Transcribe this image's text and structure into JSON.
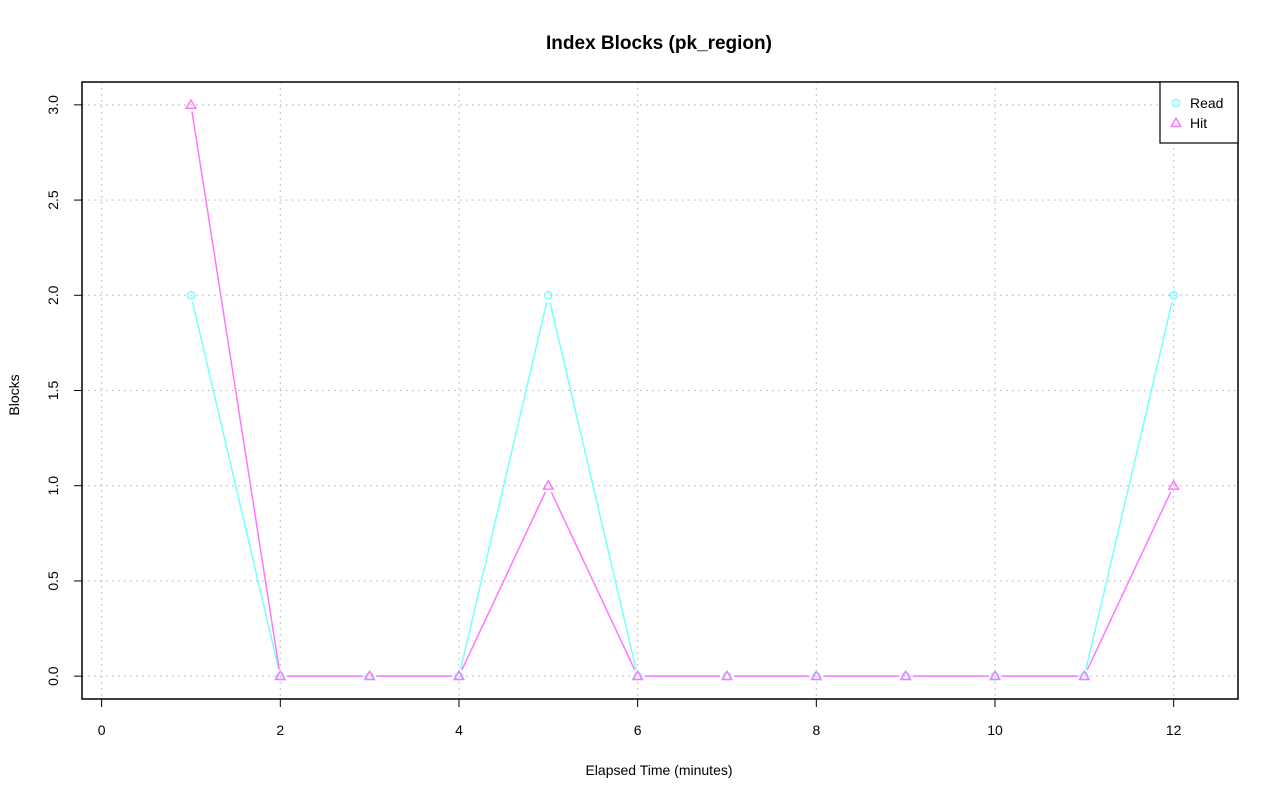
{
  "chart_data": {
    "type": "line",
    "title": "Index Blocks (pk_region)",
    "xlabel": "Elapsed Time (minutes)",
    "ylabel": "Blocks",
    "xlim": [
      -0.22,
      12.72
    ],
    "ylim": [
      -0.12,
      3.12
    ],
    "xticks": [
      0,
      2,
      4,
      6,
      8,
      10,
      12
    ],
    "xtick_labels": [
      "0",
      "2",
      "4",
      "6",
      "8",
      "10",
      "12"
    ],
    "yticks": [
      0,
      0.5,
      1,
      1.5,
      2,
      2.5,
      3
    ],
    "ytick_labels": [
      "0.0",
      "0.5",
      "1.0",
      "1.5",
      "2.0",
      "2.5",
      "3.0"
    ],
    "grid": true,
    "legend_position": "top-right",
    "x": [
      1,
      2,
      3,
      4,
      5,
      6,
      7,
      8,
      9,
      10,
      11,
      12
    ],
    "series": [
      {
        "name": "Read",
        "color": "#77ffff",
        "marker": "circle",
        "values": [
          2,
          0,
          0,
          0,
          2,
          0,
          0,
          0,
          0,
          0,
          0,
          2
        ]
      },
      {
        "name": "Hit",
        "color": "#ff77ff",
        "marker": "triangle",
        "values": [
          3,
          0,
          0,
          0,
          1,
          0,
          0,
          0,
          0,
          0,
          0,
          1
        ]
      }
    ]
  }
}
